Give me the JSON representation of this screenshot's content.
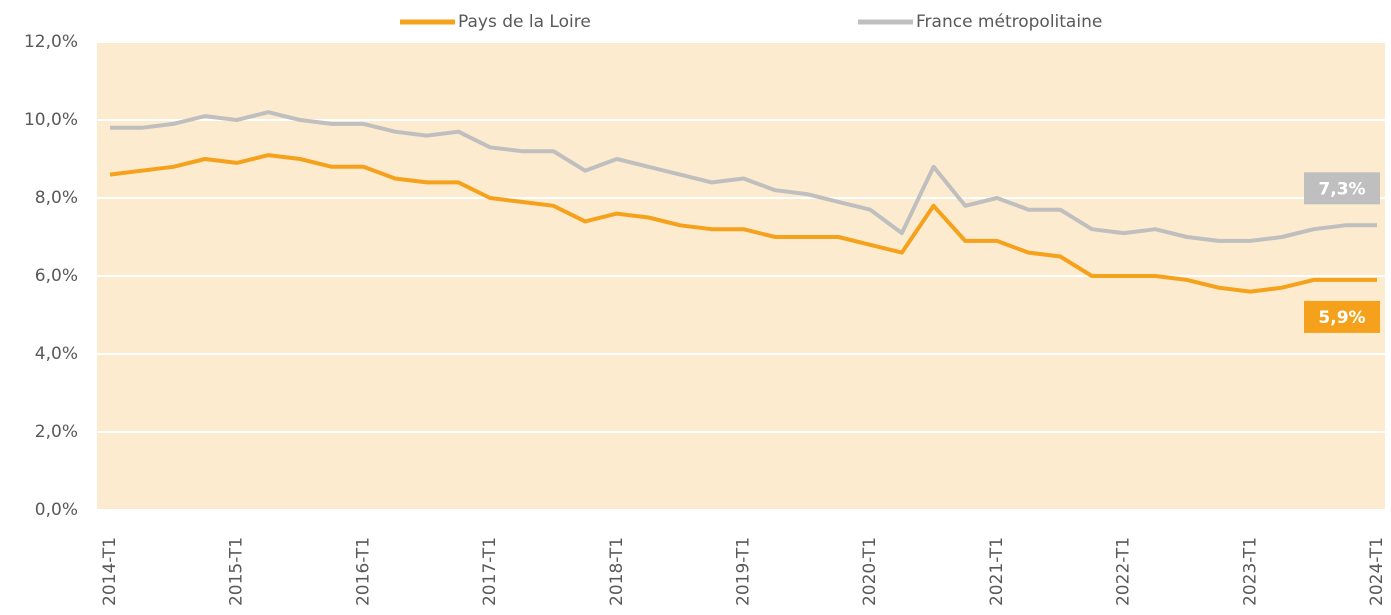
{
  "chart_data": {
    "type": "line",
    "categories": [
      "2014-T1",
      null,
      null,
      null,
      "2015-T1",
      null,
      null,
      null,
      "2016-T1",
      null,
      null,
      null,
      "2017-T1",
      null,
      null,
      null,
      "2018-T1",
      null,
      null,
      null,
      "2019-T1",
      null,
      null,
      null,
      "2020-T1",
      null,
      null,
      null,
      "2021-T1",
      null,
      null,
      null,
      "2022-T1",
      null,
      null,
      null,
      "2023-T1",
      null,
      null,
      null,
      "2024-T1"
    ],
    "series": [
      {
        "name": "Pays de la Loire",
        "color": "#f5a11c",
        "values": [
          8.6,
          8.7,
          8.8,
          9.0,
          8.9,
          9.1,
          9.0,
          8.8,
          8.8,
          8.5,
          8.4,
          8.4,
          8.0,
          7.9,
          7.8,
          7.4,
          7.6,
          7.5,
          7.3,
          7.2,
          7.2,
          7.0,
          7.0,
          7.0,
          6.8,
          6.6,
          7.8,
          6.9,
          6.9,
          6.6,
          6.5,
          6.0,
          6.0,
          6.0,
          5.9,
          5.7,
          5.6,
          5.7,
          5.9,
          5.9,
          5.9
        ],
        "value_labels": [
          null,
          null,
          null,
          null,
          null,
          null,
          null,
          null,
          null,
          null,
          null,
          null,
          null,
          null,
          null,
          null,
          null,
          null,
          null,
          null,
          null,
          null,
          null,
          null,
          null,
          null,
          null,
          null,
          null,
          null,
          null,
          null,
          null,
          null,
          null,
          null,
          null,
          null,
          null,
          null,
          "5,9%"
        ]
      },
      {
        "name": "France métropolitaine",
        "color": "#bfbfbf",
        "values": [
          9.8,
          9.8,
          9.9,
          10.1,
          10.0,
          10.2,
          10.0,
          9.9,
          9.9,
          9.7,
          9.6,
          9.7,
          9.3,
          9.2,
          9.2,
          8.7,
          9.0,
          8.8,
          8.6,
          8.4,
          8.5,
          8.2,
          8.1,
          7.9,
          7.7,
          7.1,
          8.8,
          7.8,
          8.0,
          7.7,
          7.7,
          7.2,
          7.1,
          7.2,
          7.0,
          6.9,
          6.9,
          7.0,
          7.2,
          7.3,
          7.3
        ],
        "value_labels": [
          null,
          null,
          null,
          null,
          null,
          null,
          null,
          null,
          null,
          null,
          null,
          null,
          null,
          null,
          null,
          null,
          null,
          null,
          null,
          null,
          null,
          null,
          null,
          null,
          null,
          null,
          null,
          null,
          null,
          null,
          null,
          null,
          null,
          null,
          null,
          null,
          null,
          null,
          null,
          null,
          "7,3%"
        ]
      }
    ],
    "ylim": [
      0,
      12
    ],
    "yticks": [
      {
        "value": 0,
        "label": "0,0%"
      },
      {
        "value": 2,
        "label": "2,0%"
      },
      {
        "value": 4,
        "label": "4,0%"
      },
      {
        "value": 6,
        "label": "6,0%"
      },
      {
        "value": 8,
        "label": "8,0%"
      },
      {
        "value": 10,
        "label": "10,0%"
      },
      {
        "value": 12,
        "label": "12,0%"
      }
    ],
    "grid": true,
    "legend": "top"
  }
}
